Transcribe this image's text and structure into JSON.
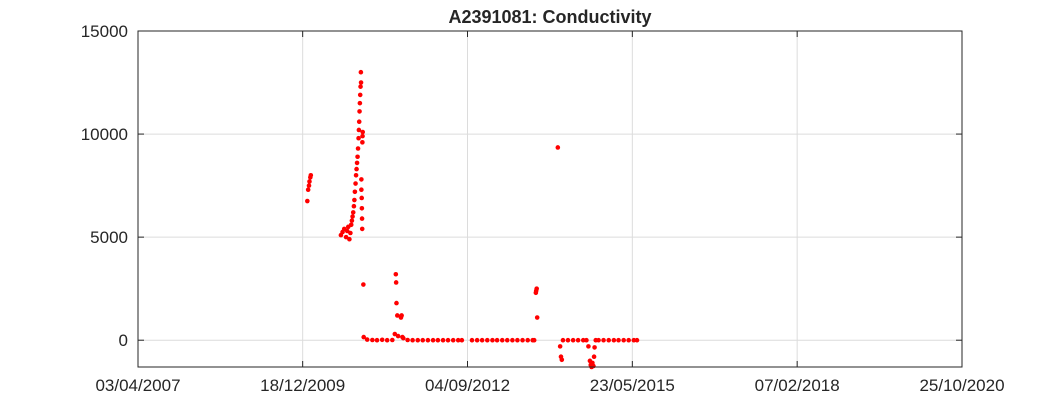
{
  "chart_data": {
    "type": "scatter",
    "title": "A2391081: Conductivity",
    "xlabel": "",
    "ylabel": "",
    "grid": true,
    "marker_color": "#ff0000",
    "x_range": [
      "2007-04-03",
      "2020-10-25"
    ],
    "y_range": [
      -1300,
      15000
    ],
    "x_ticks": [
      {
        "date": "2007-04-03",
        "label": "03/04/2007"
      },
      {
        "date": "2009-12-18",
        "label": "18/12/2009"
      },
      {
        "date": "2012-09-04",
        "label": "04/09/2012"
      },
      {
        "date": "2015-05-23",
        "label": "23/05/2015"
      },
      {
        "date": "2018-02-07",
        "label": "07/02/2018"
      },
      {
        "date": "2020-10-25",
        "label": "25/10/2020"
      }
    ],
    "y_ticks": [
      {
        "value": 0,
        "label": "0"
      },
      {
        "value": 5000,
        "label": "5000"
      },
      {
        "value": 10000,
        "label": "10000"
      },
      {
        "value": 15000,
        "label": "15000"
      }
    ],
    "points": [
      [
        "2010-01-15",
        6750
      ],
      [
        "2010-01-20",
        7300
      ],
      [
        "2010-01-25",
        7500
      ],
      [
        "2010-01-28",
        7700
      ],
      [
        "2010-02-02",
        7900
      ],
      [
        "2010-02-05",
        8000
      ],
      [
        "2010-08-05",
        5100
      ],
      [
        "2010-08-15",
        5250
      ],
      [
        "2010-08-25",
        5400
      ],
      [
        "2010-09-05",
        5000
      ],
      [
        "2010-09-12",
        5300
      ],
      [
        "2010-09-18",
        5500
      ],
      [
        "2010-09-25",
        4900
      ],
      [
        "2010-10-01",
        5200
      ],
      [
        "2010-10-06",
        5600
      ],
      [
        "2010-10-10",
        5800
      ],
      [
        "2010-10-14",
        6000
      ],
      [
        "2010-10-18",
        6200
      ],
      [
        "2010-10-22",
        6500
      ],
      [
        "2010-10-25",
        6800
      ],
      [
        "2010-10-28",
        7200
      ],
      [
        "2010-11-01",
        7600
      ],
      [
        "2010-11-04",
        8000
      ],
      [
        "2010-11-07",
        8300
      ],
      [
        "2010-11-10",
        8600
      ],
      [
        "2010-11-13",
        8900
      ],
      [
        "2010-11-16",
        9300
      ],
      [
        "2010-11-19",
        9800
      ],
      [
        "2010-11-21",
        10200
      ],
      [
        "2010-11-23",
        10600
      ],
      [
        "2010-11-25",
        11100
      ],
      [
        "2010-11-27",
        11500
      ],
      [
        "2010-11-29",
        11900
      ],
      [
        "2010-12-01",
        12300
      ],
      [
        "2010-12-03",
        13000
      ],
      [
        "2010-12-04",
        12500
      ],
      [
        "2010-12-06",
        7300
      ],
      [
        "2010-12-06",
        7800
      ],
      [
        "2010-12-08",
        6900
      ],
      [
        "2010-12-09",
        6400
      ],
      [
        "2010-12-10",
        5900
      ],
      [
        "2010-12-11",
        5400
      ],
      [
        "2010-12-12",
        9600
      ],
      [
        "2010-12-13",
        9900
      ],
      [
        "2010-12-14",
        10100
      ],
      [
        "2010-12-18",
        2700
      ],
      [
        "2010-12-20",
        150
      ],
      [
        "2011-01-10",
        30
      ],
      [
        "2011-02-10",
        10
      ],
      [
        "2011-03-10",
        0
      ],
      [
        "2011-04-10",
        20
      ],
      [
        "2011-05-10",
        0
      ],
      [
        "2011-06-10",
        10
      ],
      [
        "2011-06-25",
        300
      ],
      [
        "2011-07-01",
        3200
      ],
      [
        "2011-07-03",
        2800
      ],
      [
        "2011-07-05",
        1800
      ],
      [
        "2011-07-10",
        1200
      ],
      [
        "2011-07-15",
        200
      ],
      [
        "2011-08-01",
        1100
      ],
      [
        "2011-08-05",
        1200
      ],
      [
        "2011-08-10",
        150
      ],
      [
        "2011-08-15",
        100
      ],
      [
        "2011-09-10",
        10
      ],
      [
        "2011-10-10",
        0
      ],
      [
        "2011-11-10",
        0
      ],
      [
        "2011-12-10",
        0
      ],
      [
        "2012-01-10",
        0
      ],
      [
        "2012-02-10",
        0
      ],
      [
        "2012-03-10",
        0
      ],
      [
        "2012-04-10",
        0
      ],
      [
        "2012-05-10",
        0
      ],
      [
        "2012-06-10",
        0
      ],
      [
        "2012-07-10",
        0
      ],
      [
        "2012-08-01",
        0
      ],
      [
        "2012-10-01",
        0
      ],
      [
        "2012-11-01",
        0
      ],
      [
        "2012-12-01",
        0
      ],
      [
        "2013-01-01",
        0
      ],
      [
        "2013-02-01",
        0
      ],
      [
        "2013-03-01",
        0
      ],
      [
        "2013-04-01",
        0
      ],
      [
        "2013-05-01",
        0
      ],
      [
        "2013-06-01",
        0
      ],
      [
        "2013-07-01",
        0
      ],
      [
        "2013-08-01",
        0
      ],
      [
        "2013-09-01",
        0
      ],
      [
        "2013-10-01",
        0
      ],
      [
        "2013-10-10",
        0
      ],
      [
        "2013-10-20",
        2300
      ],
      [
        "2013-10-22",
        2400
      ],
      [
        "2013-10-25",
        2500
      ],
      [
        "2013-10-28",
        1100
      ],
      [
        "2014-03-01",
        9350
      ],
      [
        "2014-03-15",
        -300
      ],
      [
        "2014-03-20",
        -800
      ],
      [
        "2014-03-25",
        -950
      ],
      [
        "2014-04-01",
        0
      ],
      [
        "2014-05-01",
        0
      ],
      [
        "2014-06-01",
        0
      ],
      [
        "2014-07-01",
        0
      ],
      [
        "2014-08-01",
        0
      ],
      [
        "2014-08-20",
        0
      ],
      [
        "2014-09-01",
        -300
      ],
      [
        "2014-09-10",
        -1000
      ],
      [
        "2014-09-15",
        -1200
      ],
      [
        "2014-09-20",
        -1300
      ],
      [
        "2014-09-25",
        -1100
      ],
      [
        "2014-10-01",
        -1250
      ],
      [
        "2014-10-05",
        -800
      ],
      [
        "2014-10-08",
        -350
      ],
      [
        "2014-10-15",
        0
      ],
      [
        "2014-11-01",
        0
      ],
      [
        "2014-12-01",
        0
      ],
      [
        "2015-01-01",
        0
      ],
      [
        "2015-02-01",
        0
      ],
      [
        "2015-03-01",
        0
      ],
      [
        "2015-04-01",
        0
      ],
      [
        "2015-05-01",
        0
      ],
      [
        "2015-06-01",
        0
      ],
      [
        "2015-06-20",
        0
      ]
    ]
  }
}
